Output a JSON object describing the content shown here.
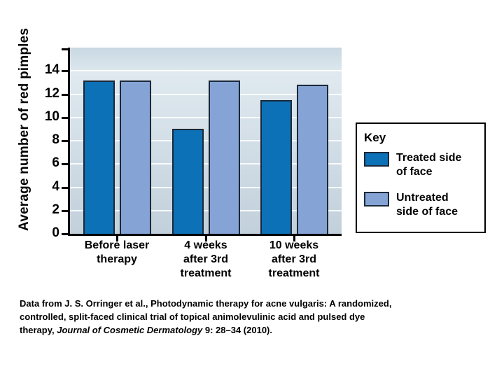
{
  "figure": {
    "y_axis_title": "Average number of red pimples",
    "key": {
      "title": "Key",
      "items": [
        {
          "name": "treated",
          "label_line1": "Treated side",
          "label_line2": "of face",
          "color": "#0c71b7"
        },
        {
          "name": "untreated",
          "label_line1": "Untreated",
          "label_line2": "side of face",
          "color": "#85a3d5"
        }
      ]
    },
    "caption_lines": [
      [
        {
          "t": "Data from J. S. Orringer et al., Photodynamic therapy for acne vulgaris: A randomized,",
          "i": false
        }
      ],
      [
        {
          "t": "controlled, split-faced clinical trial of topical animolevulinic acid and pulsed dye",
          "i": false
        }
      ],
      [
        {
          "t": "therapy, ",
          "i": false
        },
        {
          "t": "Journal of Cosmetic Dermatology",
          "i": true
        },
        {
          "t": " 9: 28–34 (2010).",
          "i": false
        }
      ]
    ]
  },
  "chart_data": {
    "type": "bar",
    "title": "",
    "categories": [
      "Before laser\ntherapy",
      "4 weeks\nafter 3rd\ntreatment",
      "10 weeks\nafter 3rd\ntreatment"
    ],
    "series": [
      {
        "name": "Treated side of face",
        "color": "#0c71b7",
        "values": [
          13.2,
          9.0,
          11.5
        ]
      },
      {
        "name": "Untreated side of face",
        "color": "#85a3d5",
        "values": [
          13.2,
          13.2,
          12.8
        ]
      }
    ],
    "xlabel": "",
    "ylabel": "Average number of red pimples",
    "ylim": [
      0,
      16
    ],
    "yticks": [
      0,
      2,
      4,
      6,
      8,
      10,
      12,
      14
    ],
    "grid": "horizontal-white-lines-at-yticks",
    "plot_background": [
      "#c8d8e2",
      "#dfe9ef",
      "#c2d0db"
    ],
    "legend_position": "right",
    "legend_title": "Key"
  }
}
